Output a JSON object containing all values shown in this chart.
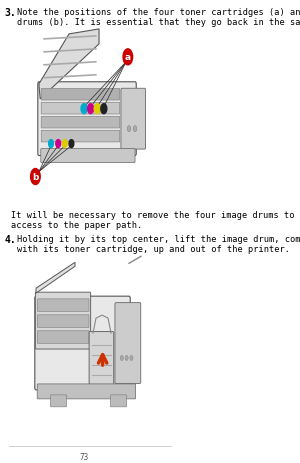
{
  "bg_color": "#ffffff",
  "page_width": 3.0,
  "page_height": 4.64,
  "dpi": 100,
  "step3_number": "3.",
  "step3_text_line1": "Note the positions of the four toner cartridges (a) and image",
  "step3_text_line2": "drums (b). It is essential that they go back in the same order.",
  "mid_text_line1": "It will be necessary to remove the four image drums to gain",
  "mid_text_line2": "access to the paper path.",
  "step4_number": "4.",
  "step4_text_line1": "Holding it by its top center, lift the image drum, complete",
  "step4_text_line2": "with its toner cartridge, up and out of the printer.",
  "footer_text": "73",
  "label_a_color": "#cc0000",
  "label_b_color": "#cc0000",
  "cyan_color": "#00aacc",
  "magenta_color": "#cc0088",
  "yellow_color": "#ddcc00",
  "black_color": "#222222",
  "arrow_color": "#cc3300",
  "text_color": "#000000",
  "step_bold_color": "#000000",
  "font_size_body": 6.2,
  "font_size_step": 7.0
}
